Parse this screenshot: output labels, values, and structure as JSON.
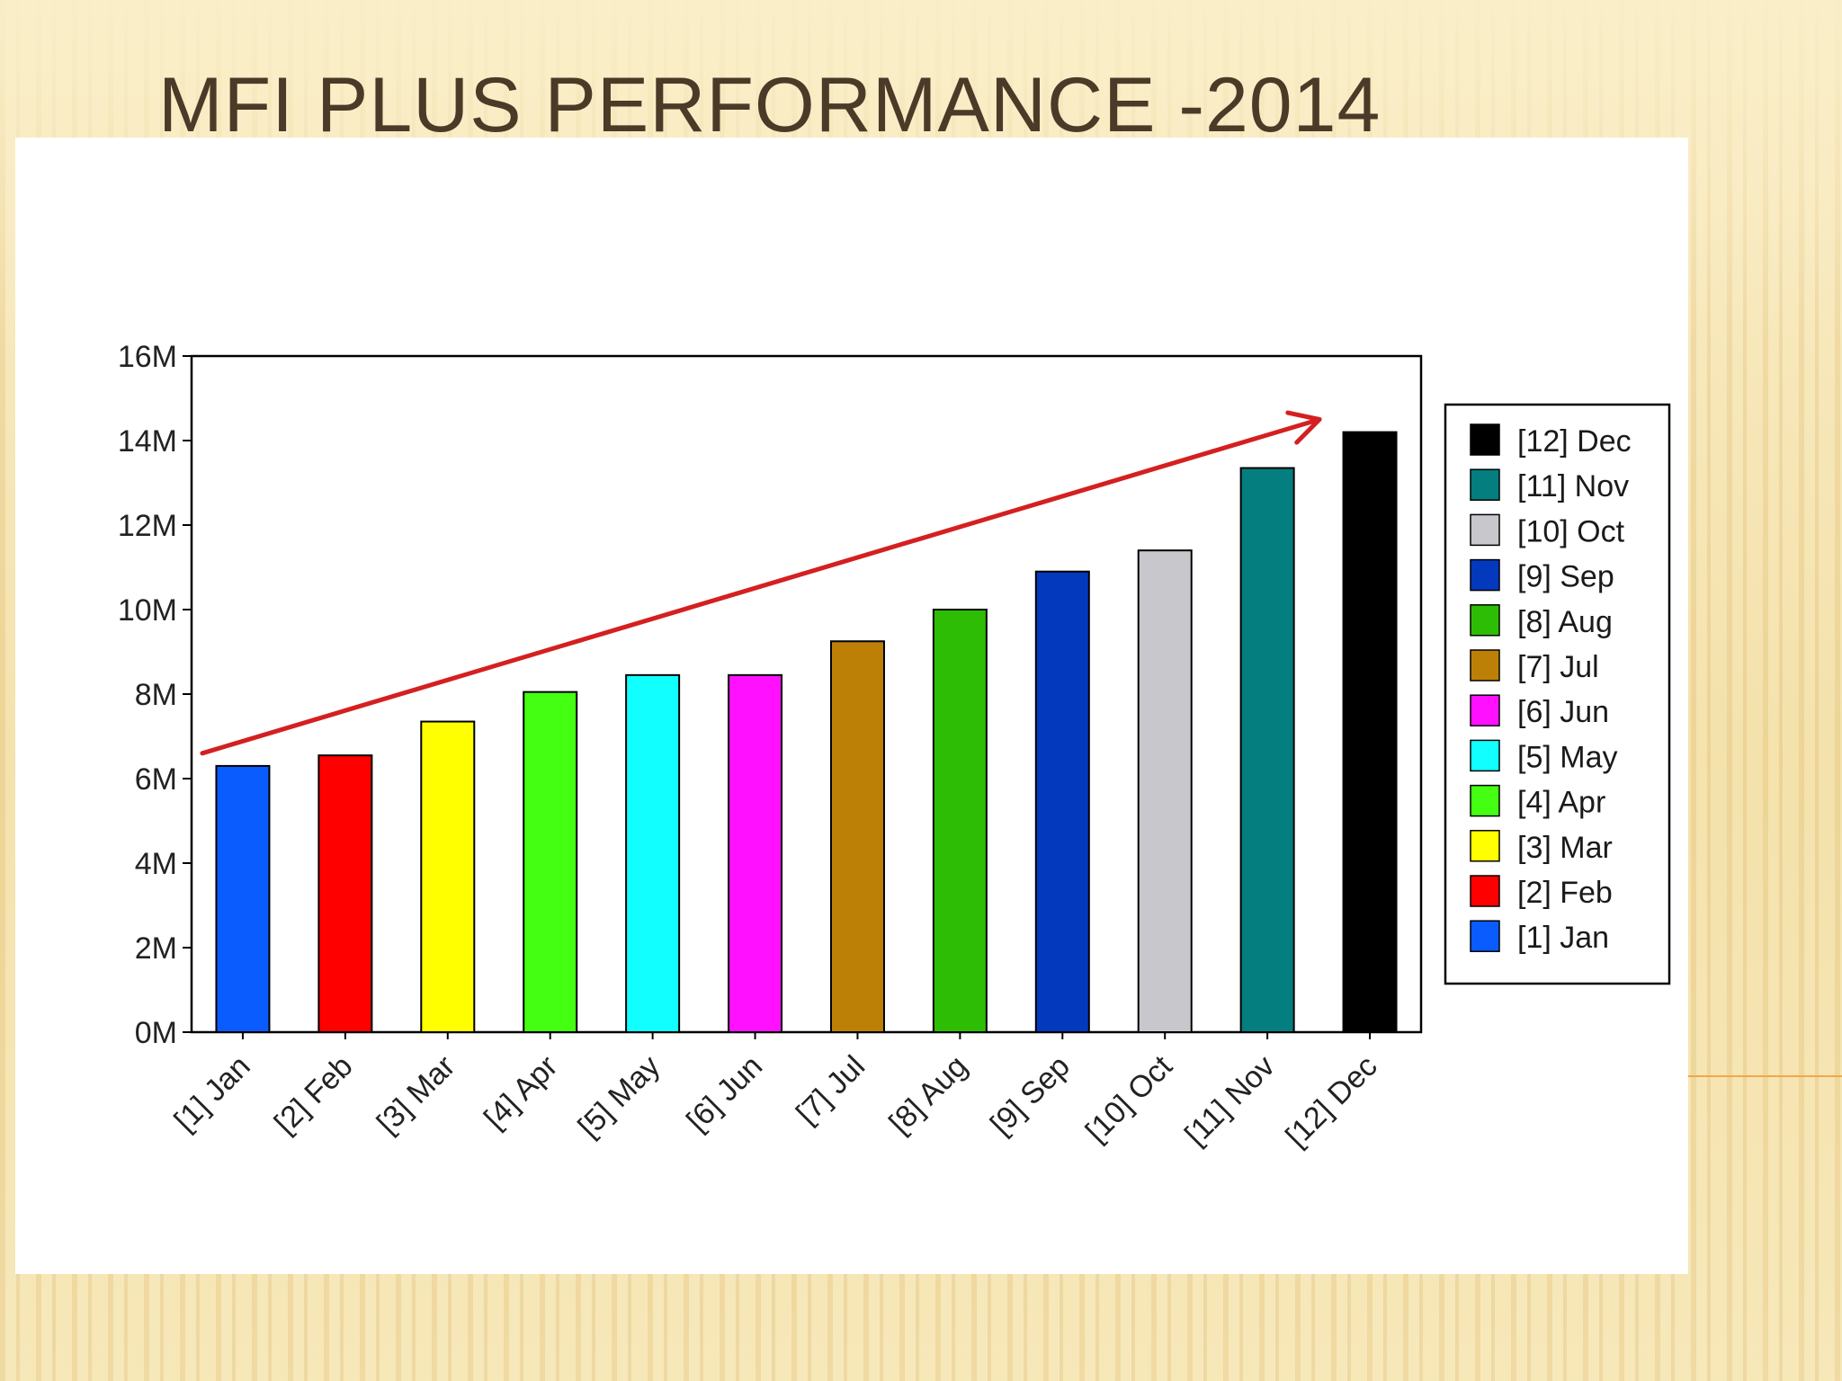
{
  "title": "MFI PLUS PERFORMANCE -2014",
  "chart_data": {
    "type": "bar",
    "categories": [
      "[1] Jan",
      "[2] Feb",
      "[3] Mar",
      "[4] Apr",
      "[5] May",
      "[6] Jun",
      "[7] Jul",
      "[8] Aug",
      "[9] Sep",
      "[10] Oct",
      "[11] Nov",
      "[12] Dec"
    ],
    "values": [
      6.3,
      6.55,
      7.35,
      8.05,
      8.45,
      8.45,
      9.25,
      10.0,
      10.9,
      11.4,
      13.35,
      14.2
    ],
    "value_unit": "M",
    "colors": [
      "#0a5cff",
      "#ff0000",
      "#ffff00",
      "#44ff11",
      "#11ffff",
      "#ff11ff",
      "#bd8006",
      "#2ebd05",
      "#0339bd",
      "#c8c8cc",
      "#047e7e",
      "#000000"
    ],
    "ylim": [
      0,
      16
    ],
    "yticks": [
      "0M",
      "2M",
      "4M",
      "6M",
      "8M",
      "10M",
      "12M",
      "14M",
      "16M"
    ],
    "legend": {
      "position": "right",
      "entries": [
        "[12] Dec",
        "[11] Nov",
        "[10] Oct",
        "[9] Sep",
        "[8] Aug",
        "[7] Jul",
        "[6] Jun",
        "[5] May",
        "[4] Apr",
        "[3] Mar",
        "[2] Feb",
        "[1] Jan"
      ]
    },
    "trend_arrow": {
      "color": "#d42020",
      "from": [
        "[1] Jan",
        6.6
      ],
      "to": [
        "[12] Dec",
        14.5
      ]
    },
    "grid": false,
    "xlabel": "",
    "ylabel": ""
  }
}
